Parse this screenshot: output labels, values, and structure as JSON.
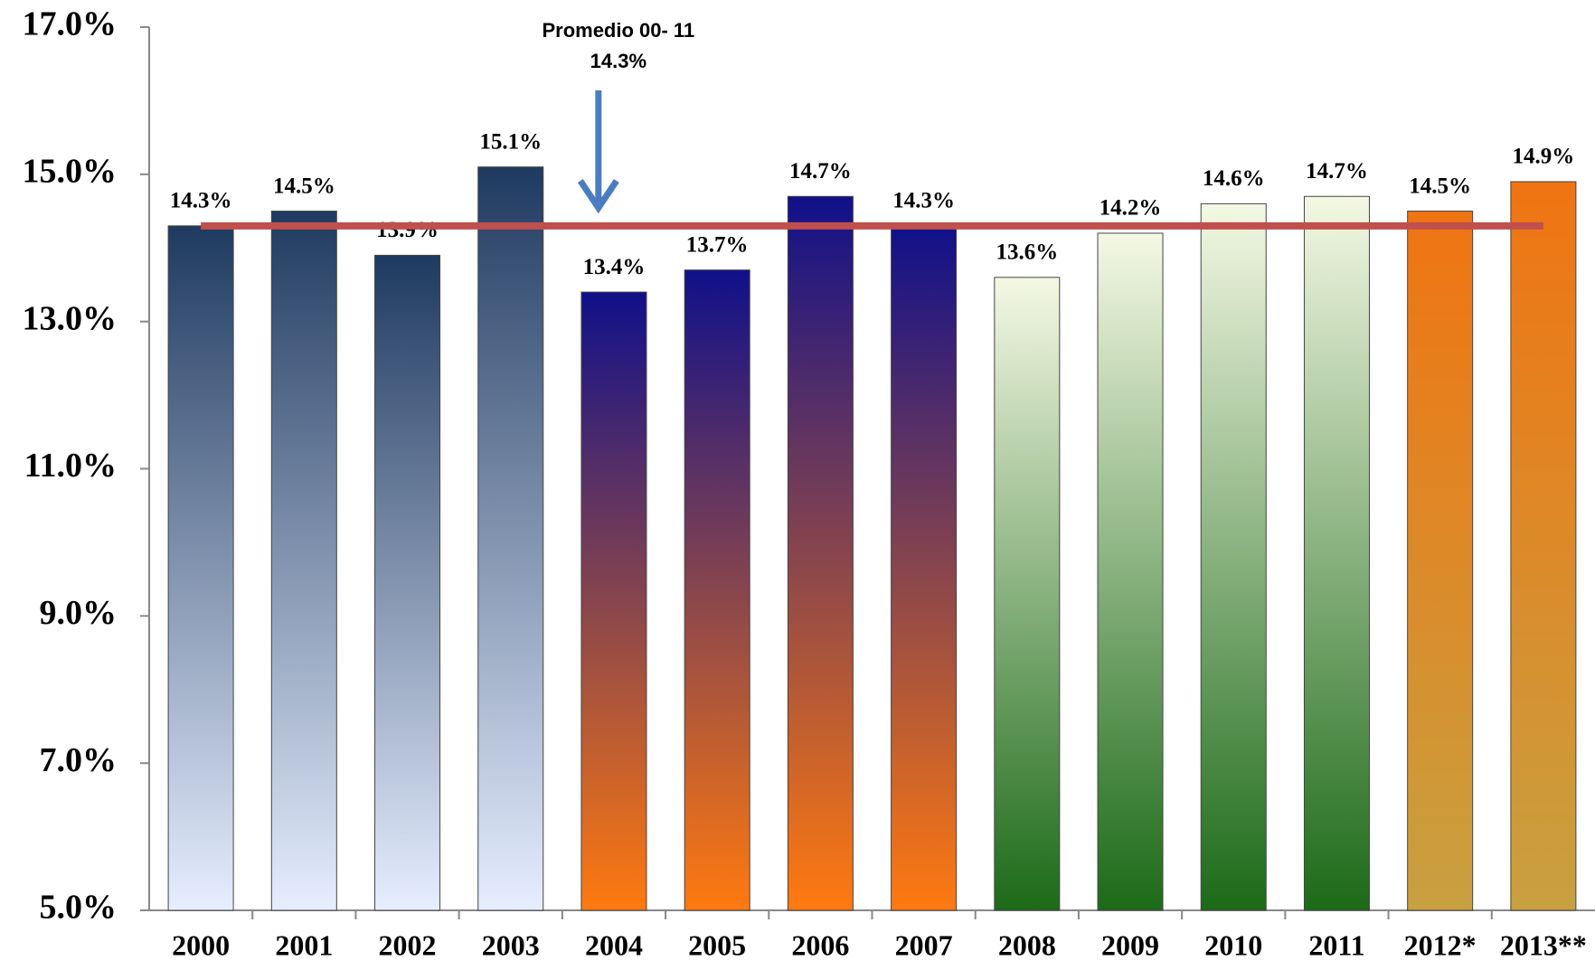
{
  "chart_data": {
    "type": "bar",
    "categories": [
      "2000",
      "2001",
      "2002",
      "2003",
      "2004",
      "2005",
      "2006",
      "2007",
      "2008",
      "2009",
      "2010",
      "2011",
      "2012*",
      "2013**"
    ],
    "values": [
      14.3,
      14.5,
      13.9,
      15.1,
      13.4,
      13.7,
      14.7,
      14.3,
      13.6,
      14.2,
      14.6,
      14.7,
      14.5,
      14.9
    ],
    "value_labels": [
      "14.3%",
      "14.5%",
      "13.9%",
      "15.1%",
      "13.4%",
      "13.7%",
      "14.7%",
      "14.3%",
      "13.6%",
      "14.2%",
      "14.6%",
      "14.7%",
      "14.5%",
      "14.9%"
    ],
    "gradients": [
      [
        "#1f3a60",
        "#e6eeff"
      ],
      [
        "#1f3a60",
        "#e6eeff"
      ],
      [
        "#1f3a60",
        "#e6eeff"
      ],
      [
        "#1f3a60",
        "#e6eeff"
      ],
      [
        "#10108a",
        "#ff7a10"
      ],
      [
        "#10108a",
        "#ff7a10"
      ],
      [
        "#10108a",
        "#ff7a10"
      ],
      [
        "#10108a",
        "#ff7a10"
      ],
      [
        "#f4f8e4",
        "#1c6a18"
      ],
      [
        "#f4f8e4",
        "#1c6a18"
      ],
      [
        "#f4f8e4",
        "#1c6a18"
      ],
      [
        "#f4f8e4",
        "#1c6a18"
      ],
      [
        "#f07412",
        "#c8a040"
      ],
      [
        "#f07412",
        "#c8a040"
      ]
    ],
    "ylim": [
      5,
      17
    ],
    "yticks": [
      {
        "value": 5,
        "label": "5.0%"
      },
      {
        "value": 7,
        "label": "7.0%"
      },
      {
        "value": 9,
        "label": "9.0%"
      },
      {
        "value": 11,
        "label": "11.0%"
      },
      {
        "value": 13,
        "label": "13.0%"
      },
      {
        "value": 15,
        "label": "15.0%"
      },
      {
        "value": 17,
        "label": "17.0%"
      }
    ],
    "average": {
      "title": "Promedio 00- 11",
      "value": 14.3,
      "label": "14.3%",
      "color": "#c0504d"
    },
    "arrow_color": "#4a7cc0"
  }
}
